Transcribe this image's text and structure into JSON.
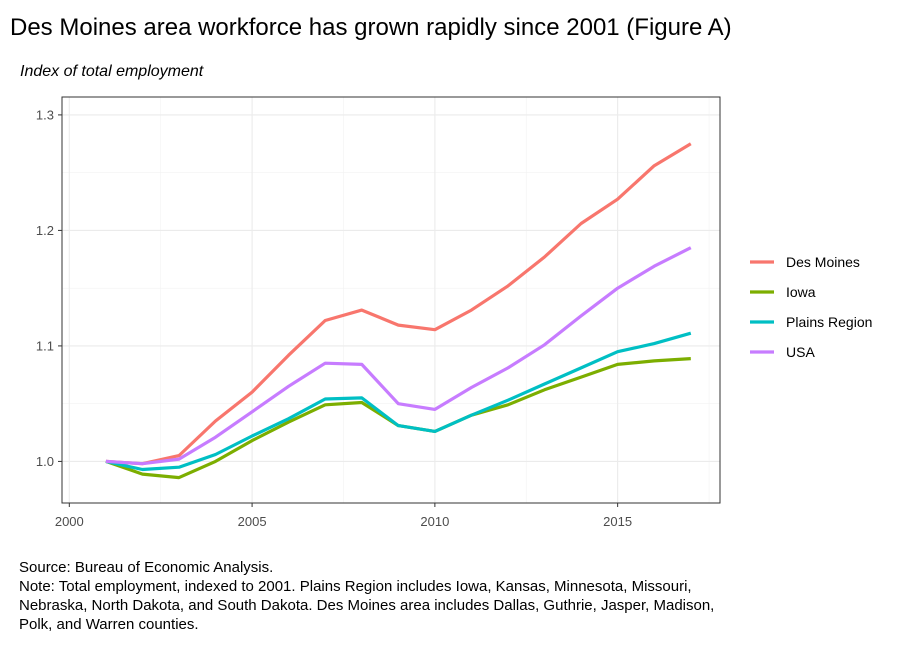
{
  "title": "Des Moines area workforce has grown rapidly since 2001 (Figure A)",
  "subtitle": "Index of total employment",
  "notes": {
    "source": "Source: Bureau of Economic Analysis.",
    "note_lines": [
      "Note: Total employment, indexed to 2001. Plains Region includes Iowa, Kansas, Minnesota, Missouri,",
      "Nebraska, North Dakota, and South Dakota. Des Moines area includes Dallas, Guthrie, Jasper, Madison,",
      "Polk, and Warren counties."
    ]
  },
  "chart_data": {
    "type": "line",
    "title": "Des Moines area workforce has grown rapidly since 2001 (Figure A)",
    "ylabel": "Index of total employment",
    "xlabel": "",
    "x": [
      2001,
      2002,
      2003,
      2004,
      2005,
      2006,
      2007,
      2008,
      2009,
      2010,
      2011,
      2012,
      2013,
      2014,
      2015,
      2016,
      2017
    ],
    "xlim": [
      1999.8,
      2017.8
    ],
    "ylim": [
      0.964,
      1.3155
    ],
    "xticks": [
      2000,
      2005,
      2010,
      2015
    ],
    "xtick_labels": [
      "2000",
      "2005",
      "2010",
      "2015"
    ],
    "yticks": [
      1.0,
      1.1,
      1.2,
      1.3
    ],
    "ytick_labels": [
      "1.0",
      "1.1",
      "1.2",
      "1.3"
    ],
    "grid": true,
    "legend_position": "right",
    "series": [
      {
        "name": "Des Moines",
        "color": "#F8766D",
        "values": [
          1.0,
          0.998,
          1.005,
          1.035,
          1.06,
          1.092,
          1.122,
          1.131,
          1.118,
          1.114,
          1.131,
          1.152,
          1.177,
          1.206,
          1.227,
          1.256,
          1.275
        ]
      },
      {
        "name": "Iowa",
        "color": "#7CAE00",
        "values": [
          1.0,
          0.989,
          0.986,
          1.0,
          1.018,
          1.034,
          1.049,
          1.051,
          1.031,
          1.026,
          1.04,
          1.049,
          1.062,
          1.073,
          1.084,
          1.087,
          1.089
        ]
      },
      {
        "name": "Plains Region",
        "color": "#00BFC4",
        "values": [
          1.0,
          0.993,
          0.995,
          1.006,
          1.022,
          1.037,
          1.054,
          1.055,
          1.031,
          1.026,
          1.04,
          1.053,
          1.067,
          1.081,
          1.095,
          1.102,
          1.111
        ]
      },
      {
        "name": "USA",
        "color": "#C77CFF",
        "values": [
          1.0,
          0.998,
          1.002,
          1.021,
          1.043,
          1.065,
          1.085,
          1.084,
          1.05,
          1.045,
          1.064,
          1.081,
          1.101,
          1.126,
          1.15,
          1.169,
          1.185
        ]
      }
    ]
  }
}
